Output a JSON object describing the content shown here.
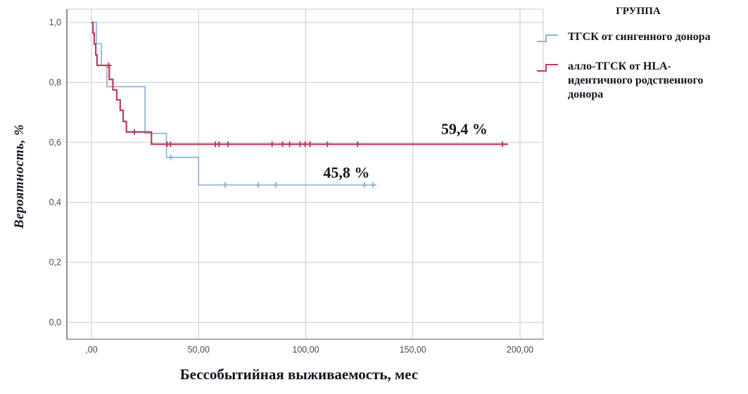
{
  "chart_data": {
    "type": "line",
    "subtype": "kaplan-meier-step",
    "title": "",
    "xlabel": "Бессобытийная выживаемость, мес",
    "ylabel": "Вероятность, %",
    "legend_title": "ГРУППА",
    "legend_position": "right-top",
    "grid": true,
    "xlim": [
      -11.5,
      211
    ],
    "ylim": [
      -0.056,
      1.044
    ],
    "x_ticks": [
      {
        "value": 0,
        "label": ",00"
      },
      {
        "value": 50,
        "label": "50,00"
      },
      {
        "value": 100,
        "label": "100,00"
      },
      {
        "value": 150,
        "label": "150,00"
      },
      {
        "value": 200,
        "label": "200,00"
      }
    ],
    "y_ticks": [
      {
        "value": 0.0,
        "label": "0,0"
      },
      {
        "value": 0.2,
        "label": "0,2"
      },
      {
        "value": 0.4,
        "label": "0,4"
      },
      {
        "value": 0.6,
        "label": "0,6"
      },
      {
        "value": 0.8,
        "label": "0,8"
      },
      {
        "value": 1.0,
        "label": "1,0"
      }
    ],
    "series": [
      {
        "key": "syngeneic-tgsk",
        "name": "ТГСК от сингенного донора",
        "color": "#8fb3dc",
        "stroke_width": 1.7,
        "annotation": {
          "text": "45,8 %",
          "x": 119,
          "y": 0.499
        },
        "points": [
          [
            0,
            1.0
          ],
          [
            2.3,
            0.929
          ],
          [
            4.6,
            0.857
          ],
          [
            7.2,
            0.786
          ],
          [
            25,
            0.63
          ],
          [
            35,
            0.55
          ],
          [
            50,
            0.458
          ]
        ],
        "end_x": 133,
        "censors": [
          [
            37,
            0.55
          ],
          [
            62.4,
            0.458
          ],
          [
            77.8,
            0.458
          ],
          [
            86,
            0.458
          ],
          [
            127.4,
            0.458
          ],
          [
            131.4,
            0.458
          ]
        ]
      },
      {
        "key": "allo-tgsk-hla",
        "name": "алло-ТГСК от HLA-идентичного родственного донора",
        "color": "#c03a57",
        "stroke_width": 2.2,
        "annotation": {
          "text": "59,4 %",
          "x": 174,
          "y": 0.644
        },
        "points": [
          [
            0,
            1.0
          ],
          [
            0.7,
            0.964
          ],
          [
            1.3,
            0.928
          ],
          [
            2.0,
            0.892
          ],
          [
            2.6,
            0.857
          ],
          [
            8.3,
            0.81
          ],
          [
            10,
            0.775
          ],
          [
            11.8,
            0.742
          ],
          [
            13.4,
            0.707
          ],
          [
            14.8,
            0.67
          ],
          [
            16.3,
            0.635
          ],
          [
            28,
            0.594
          ]
        ],
        "end_x": 194.4,
        "censors": [
          [
            8,
            0.857
          ],
          [
            20,
            0.635
          ],
          [
            35.3,
            0.594
          ],
          [
            36.9,
            0.594
          ],
          [
            57.8,
            0.594
          ],
          [
            59.5,
            0.594
          ],
          [
            63.7,
            0.594
          ],
          [
            84.3,
            0.594
          ],
          [
            89.2,
            0.594
          ],
          [
            92.5,
            0.594
          ],
          [
            97.4,
            0.594
          ],
          [
            99.7,
            0.594
          ],
          [
            102,
            0.594
          ],
          [
            110.1,
            0.594
          ],
          [
            124.2,
            0.594
          ],
          [
            191.8,
            0.594
          ]
        ]
      }
    ],
    "colors": {
      "grid": "#c9c9c9",
      "frame": "#c9c9c9",
      "axis": "#8f8f8f",
      "tick_text": "#4a4a4a",
      "annotation_text": "#16161c"
    }
  }
}
